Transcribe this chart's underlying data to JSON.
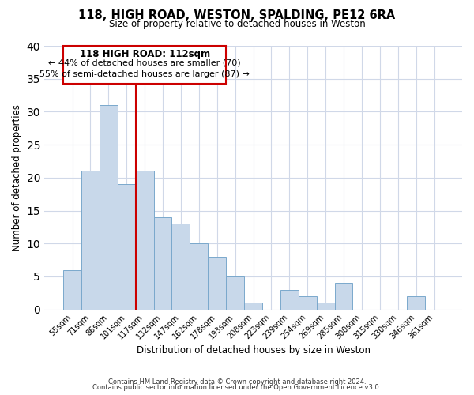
{
  "title": "118, HIGH ROAD, WESTON, SPALDING, PE12 6RA",
  "subtitle": "Size of property relative to detached houses in Weston",
  "xlabel": "Distribution of detached houses by size in Weston",
  "ylabel": "Number of detached properties",
  "footer_line1": "Contains HM Land Registry data © Crown copyright and database right 2024.",
  "footer_line2": "Contains public sector information licensed under the Open Government Licence v3.0.",
  "bar_labels": [
    "55sqm",
    "71sqm",
    "86sqm",
    "101sqm",
    "117sqm",
    "132sqm",
    "147sqm",
    "162sqm",
    "178sqm",
    "193sqm",
    "208sqm",
    "223sqm",
    "239sqm",
    "254sqm",
    "269sqm",
    "285sqm",
    "300sqm",
    "315sqm",
    "330sqm",
    "346sqm",
    "361sqm"
  ],
  "bar_values": [
    6,
    21,
    31,
    19,
    21,
    14,
    13,
    10,
    8,
    5,
    1,
    0,
    3,
    2,
    1,
    4,
    0,
    0,
    0,
    2,
    0
  ],
  "bar_color": "#c8d8ea",
  "bar_edge_color": "#7aa8cc",
  "vline_color": "#cc0000",
  "annotation_title": "118 HIGH ROAD: 112sqm",
  "annotation_line1": "← 44% of detached houses are smaller (70)",
  "annotation_line2": "55% of semi-detached houses are larger (87) →",
  "annotation_box_color": "#ffffff",
  "annotation_box_edge": "#cc0000",
  "ylim": [
    0,
    40
  ],
  "yticks": [
    0,
    5,
    10,
    15,
    20,
    25,
    30,
    35,
    40
  ],
  "background_color": "#ffffff",
  "grid_color": "#d0d8e8"
}
